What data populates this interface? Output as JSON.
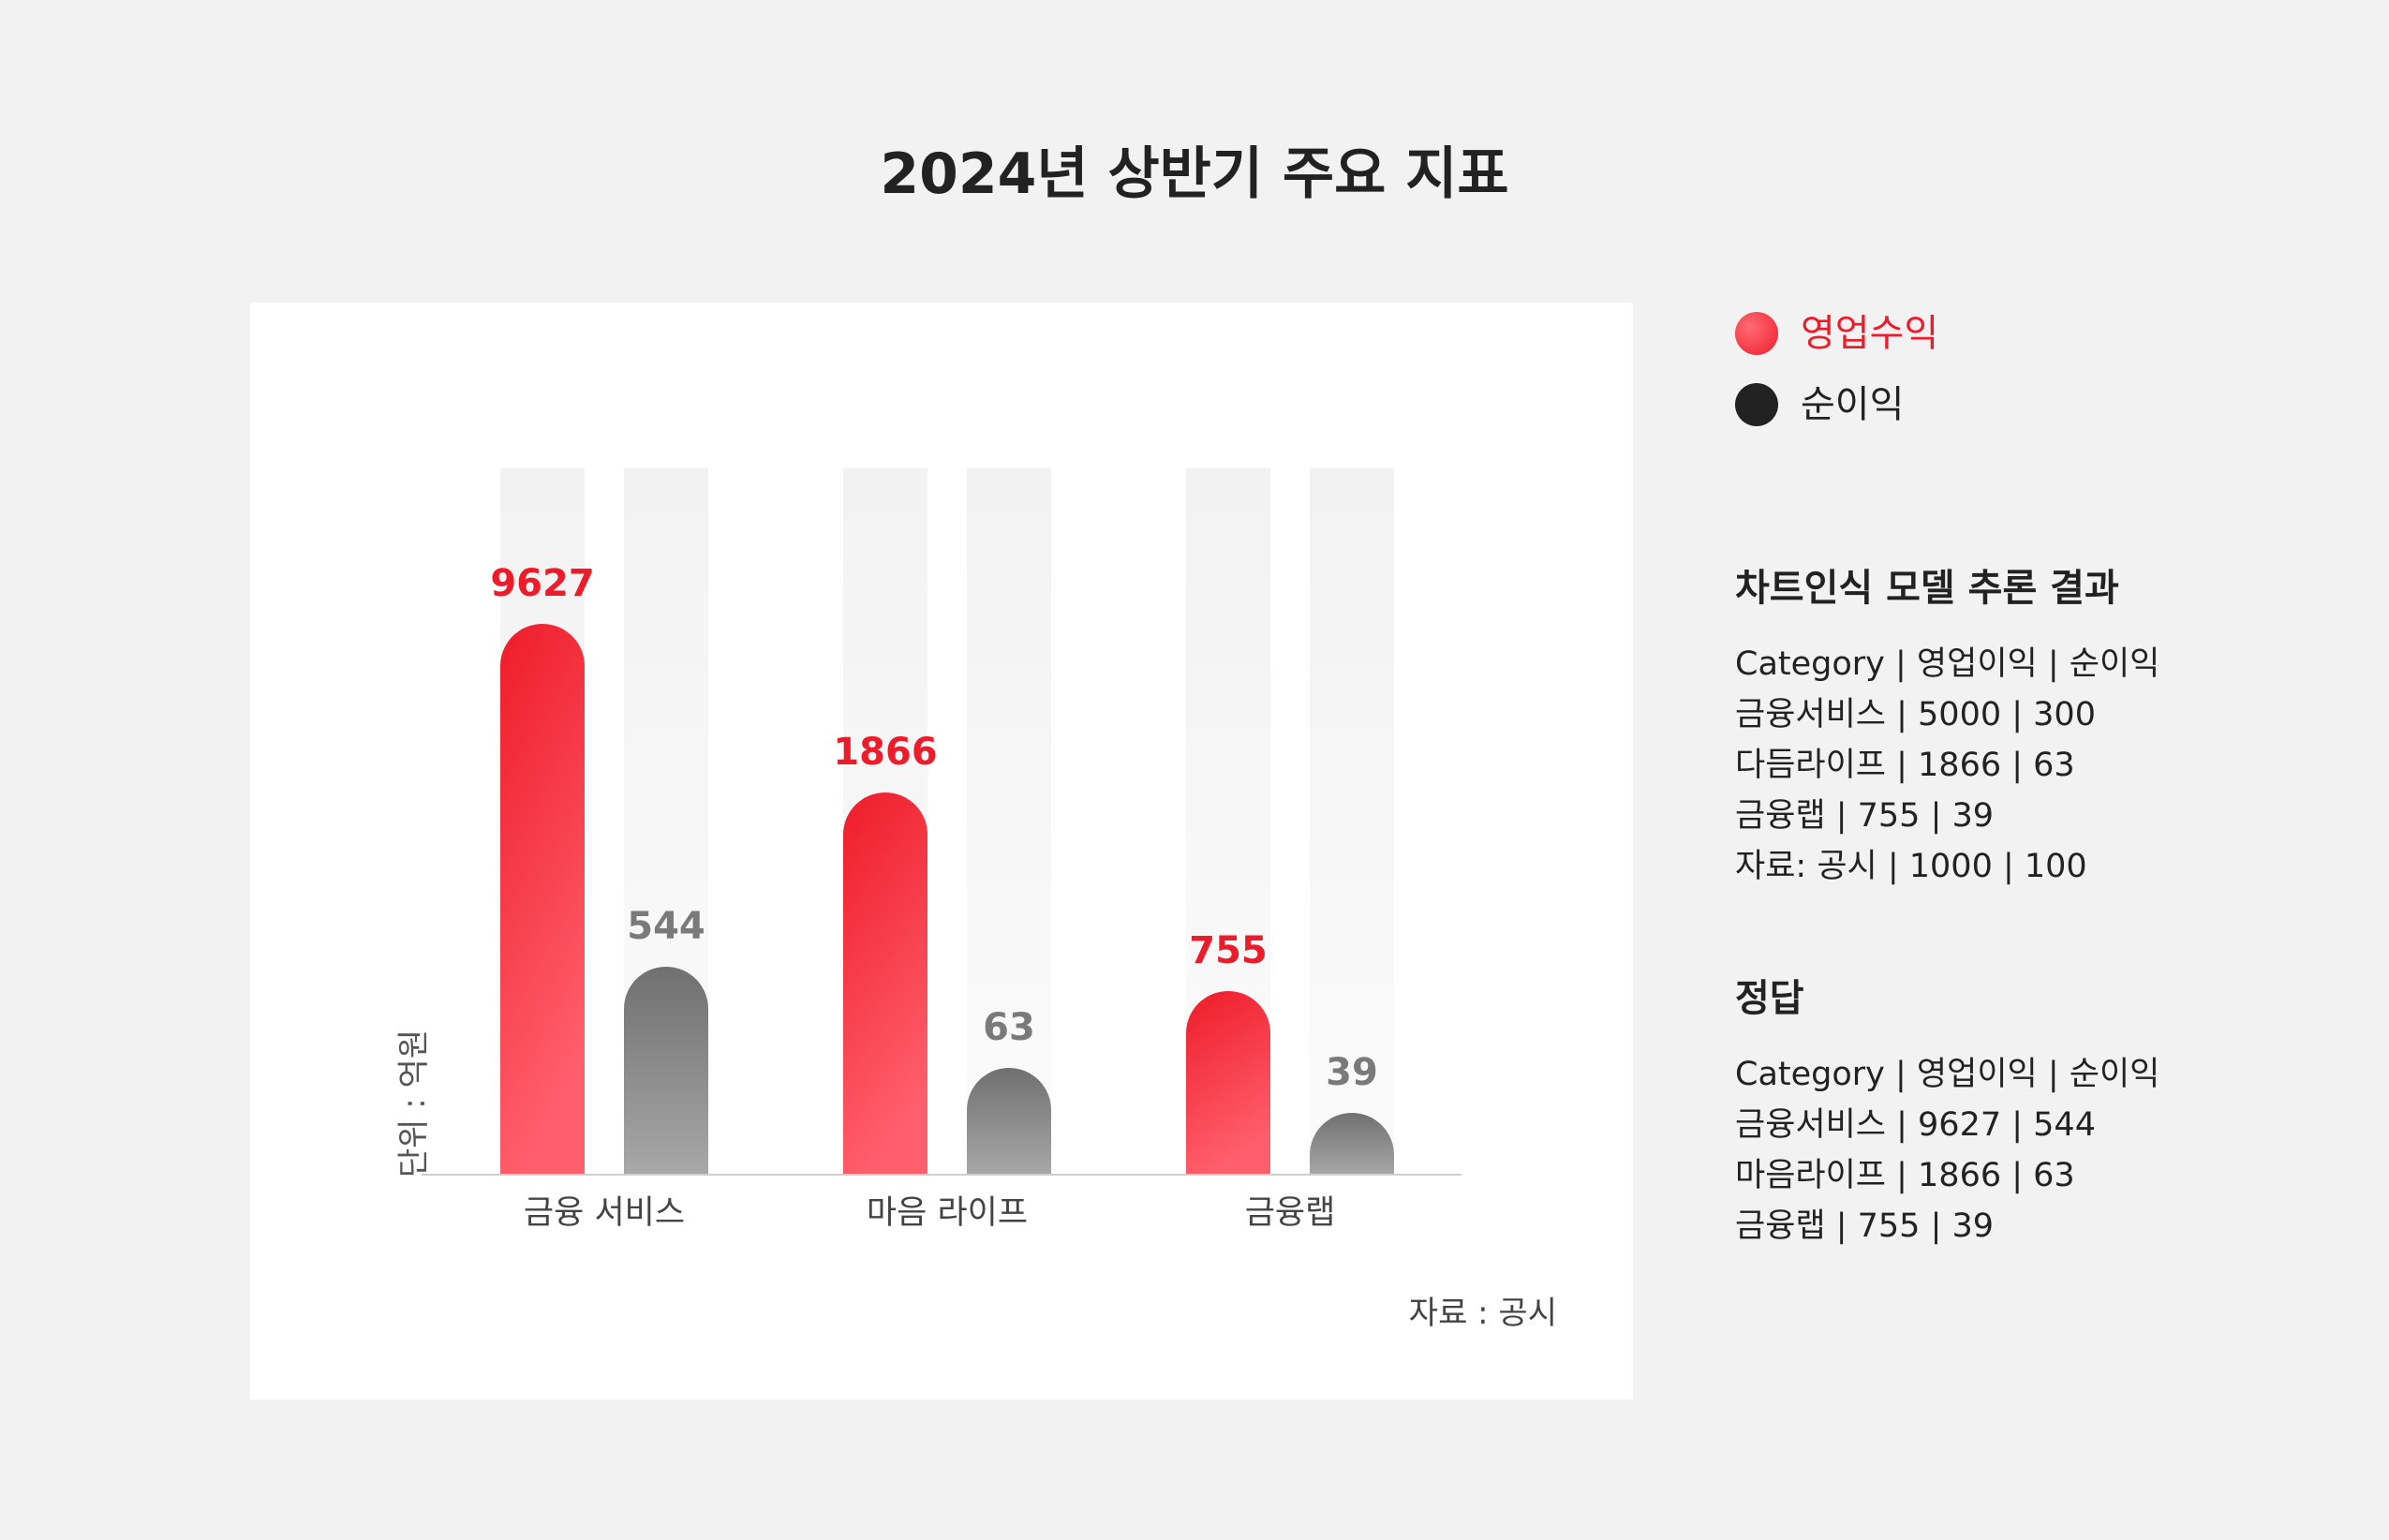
{
  "title": "2024년 상반기 주요 지표",
  "legend": [
    {
      "label": "영업수익",
      "color": "#ee1c2a",
      "icon": "red-dot-icon"
    },
    {
      "label": "순이익",
      "color": "#222222",
      "icon": "black-dot-icon"
    }
  ],
  "unit_label": "단위 : 억원",
  "source_label": "자료 : 공시",
  "chart_data": {
    "type": "bar",
    "title": "2024년 상반기 주요 지표",
    "ylabel": "단위 : 억원",
    "categories": [
      "금융 서비스",
      "마음 라이프",
      "금융랩"
    ],
    "series": [
      {
        "name": "영업수익",
        "values": [
          9627,
          1866,
          755
        ],
        "color": "#ee1c2a"
      },
      {
        "name": "순이익",
        "values": [
          544,
          63,
          39
        ],
        "color": "#7a7a7a"
      }
    ],
    "note": "자료 : 공시"
  },
  "inference": {
    "title": "차트인식 모델 추론 결과",
    "lines": [
      "Category | 영업이익 | 순이익",
      "금융서비스 | 5000 | 300",
      "다듬라이프 | 1866 | 63",
      "금융랩 | 755 | 39",
      "자료: 공시 | 1000 | 100"
    ]
  },
  "answer": {
    "title": "정답",
    "lines": [
      "Category | 영업이익 | 순이익",
      "금융서비스 | 9627 | 544",
      "마음라이프 | 1866 | 63",
      "금융랩 | 755 | 39"
    ]
  }
}
